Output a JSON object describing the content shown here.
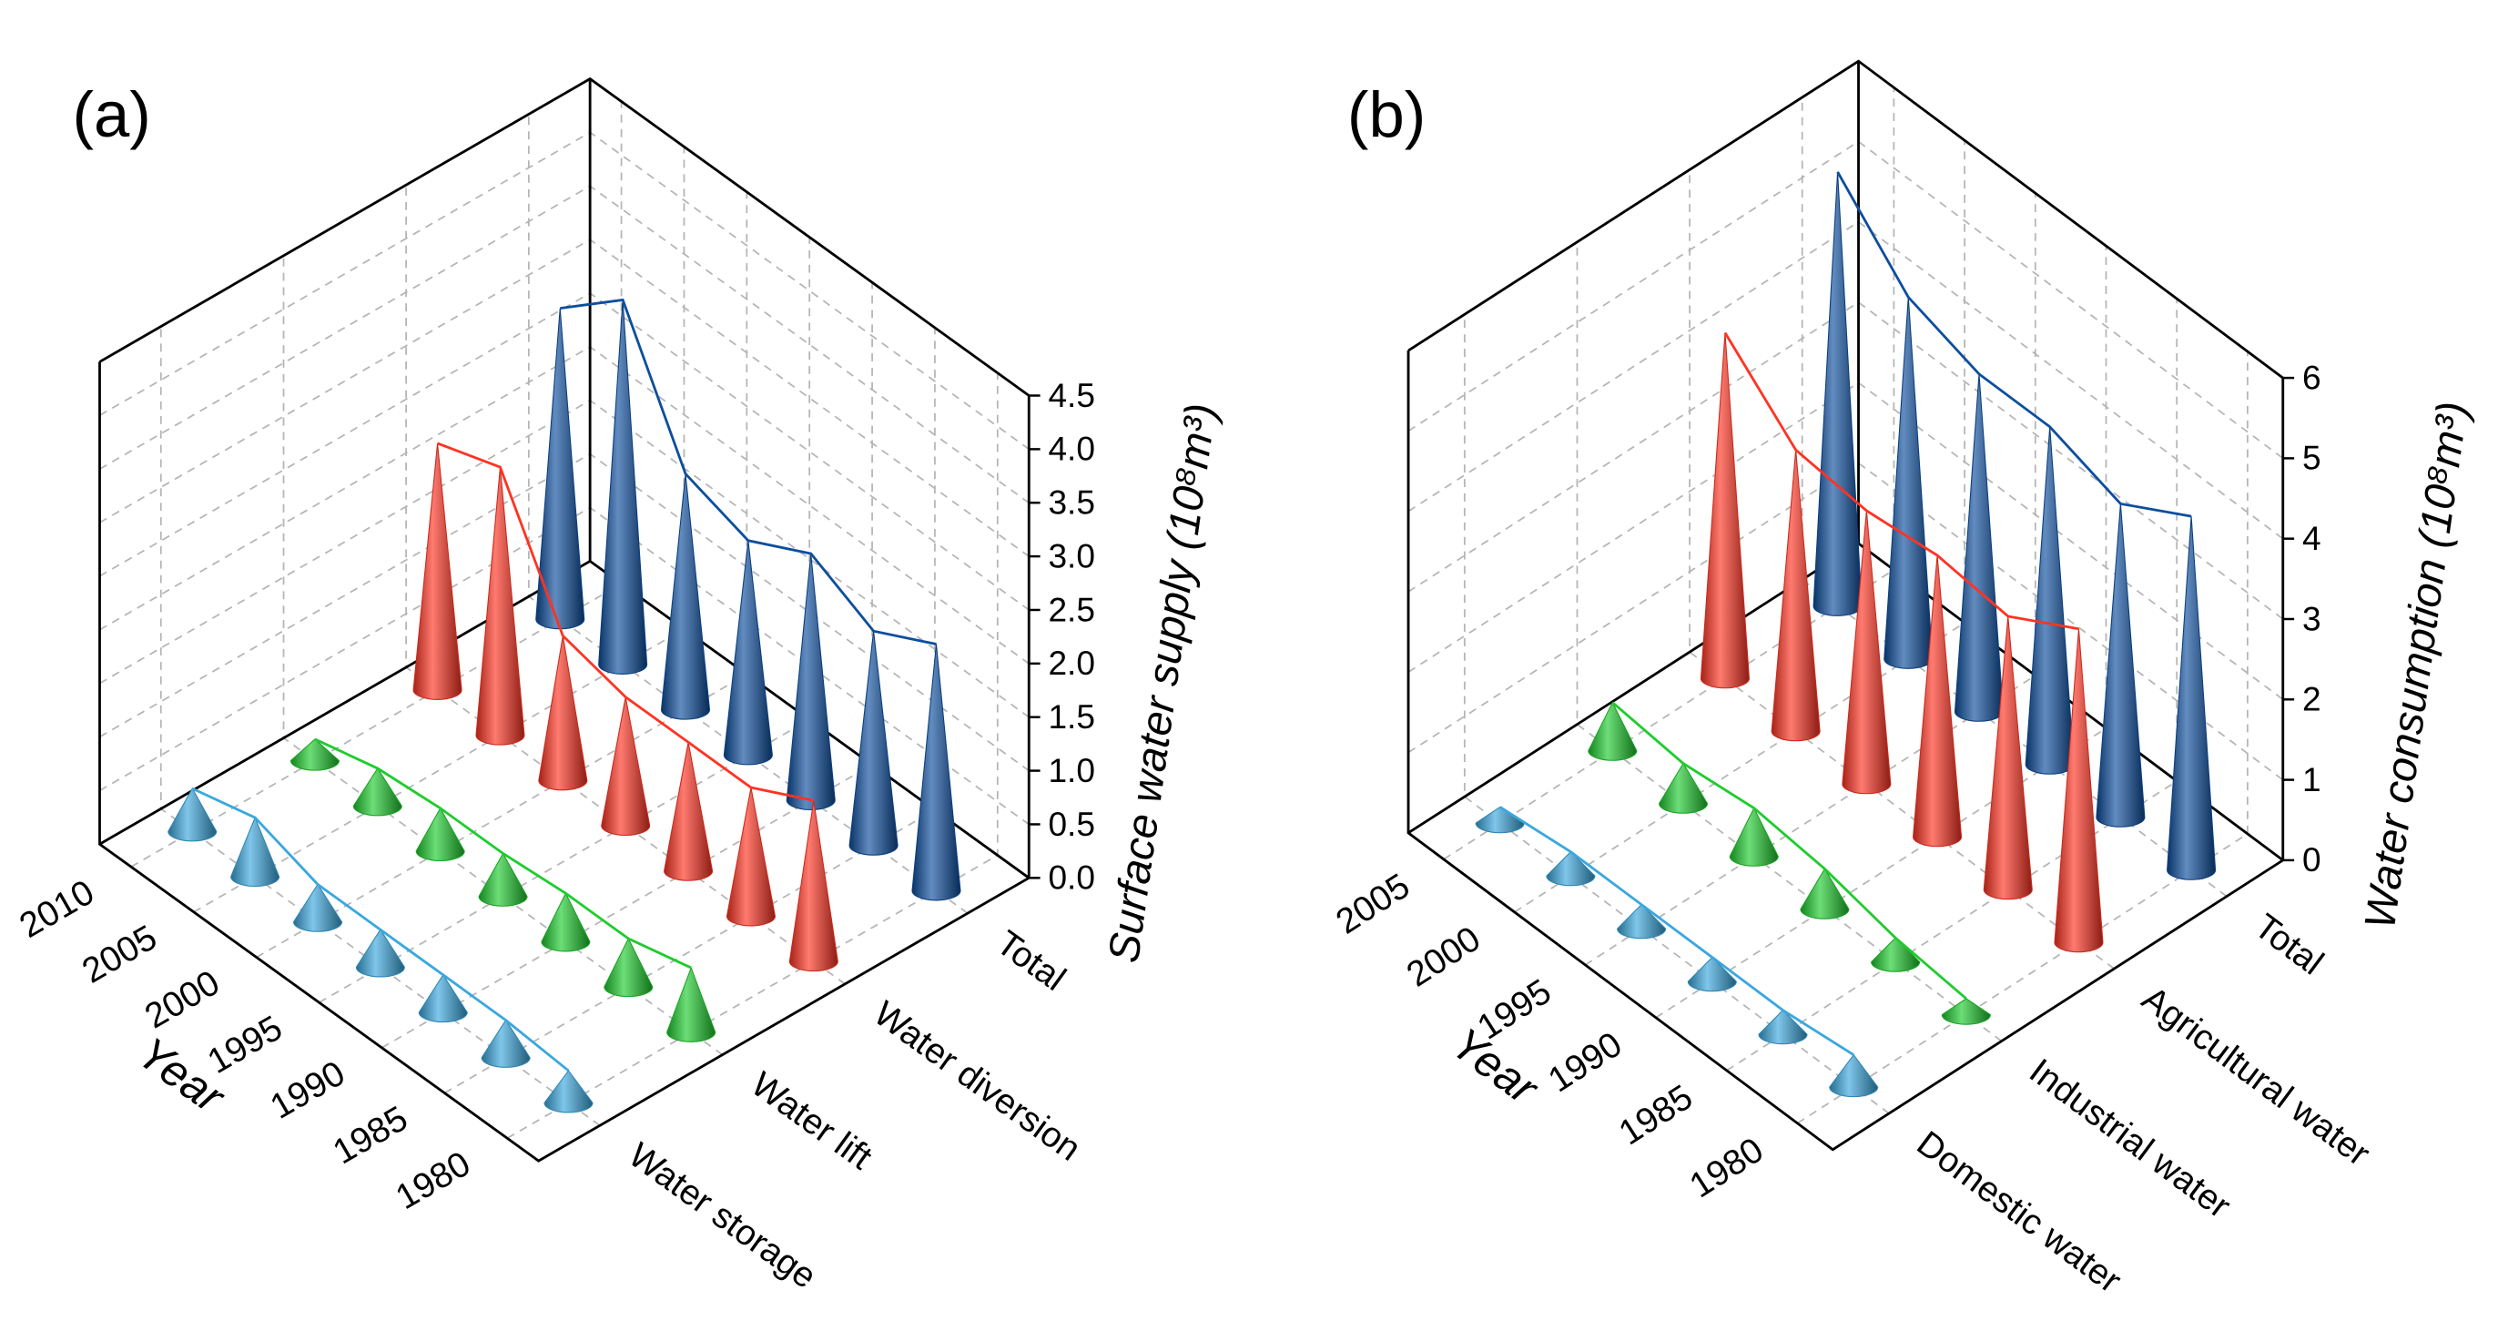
{
  "chart_data": [
    {
      "type": "cone3d",
      "panel_label": "(a)",
      "x_label": "Year",
      "z_label": "Surface water supply (10⁸m³)",
      "categories": [
        "1980",
        "1985",
        "1990",
        "1995",
        "2000",
        "2005",
        "2010"
      ],
      "series": [
        {
          "name": "Water storage",
          "color": "#3aa8de",
          "values": [
            0.3,
            0.35,
            0.35,
            0.35,
            0.35,
            0.55,
            0.4
          ]
        },
        {
          "name": "Water lift",
          "color": "#1fcc2e",
          "values": [
            0.6,
            0.45,
            0.45,
            0.4,
            0.4,
            0.35,
            0.2
          ]
        },
        {
          "name": "Water diversion",
          "color": "#ff3322",
          "values": [
            1.5,
            1.2,
            1.2,
            1.2,
            1.35,
            2.5,
            2.3
          ]
        },
        {
          "name": "Total",
          "color": "#0d4e9e",
          "values": [
            2.3,
            2.0,
            2.3,
            2.0,
            2.2,
            3.4,
            2.9
          ]
        }
      ],
      "zlim": [
        0,
        4.5
      ],
      "zticks": [
        {
          "value": 0,
          "label": "0.0"
        },
        {
          "value": 0.5,
          "label": "0.5"
        },
        {
          "value": 1,
          "label": "1.0"
        },
        {
          "value": 1.5,
          "label": "1.5"
        },
        {
          "value": 2,
          "label": "2.0"
        },
        {
          "value": 2.5,
          "label": "2.5"
        },
        {
          "value": 3,
          "label": "3.0"
        },
        {
          "value": 3.5,
          "label": "3.5"
        },
        {
          "value": 4,
          "label": "4.0"
        },
        {
          "value": 4.5,
          "label": "4.5"
        }
      ],
      "grid": true
    },
    {
      "type": "cone3d",
      "panel_label": "(b)",
      "x_label": "Year",
      "z_label": "Water consumption (10⁸m³)",
      "categories": [
        "1980",
        "1985",
        "1990",
        "1995",
        "2000",
        "2005"
      ],
      "series": [
        {
          "name": "Domestic water",
          "color": "#3aa8de",
          "values": [
            0.4,
            0.3,
            0.3,
            0.3,
            0.3,
            0.2
          ]
        },
        {
          "name": "Industrial water",
          "color": "#1fcc2e",
          "values": [
            0.2,
            0.3,
            0.5,
            0.6,
            0.5,
            0.6
          ]
        },
        {
          "name": "Agricultural water",
          "color": "#ff3322",
          "values": [
            3.9,
            3.4,
            3.5,
            3.4,
            3.5,
            4.3
          ]
        },
        {
          "name": "Total",
          "color": "#0d4e9e",
          "values": [
            4.4,
            3.9,
            4.2,
            4.2,
            4.5,
            5.4
          ]
        }
      ],
      "zlim": [
        0,
        6
      ],
      "zticks": [
        0,
        1,
        2,
        3,
        4,
        5,
        6
      ],
      "grid": true
    }
  ]
}
